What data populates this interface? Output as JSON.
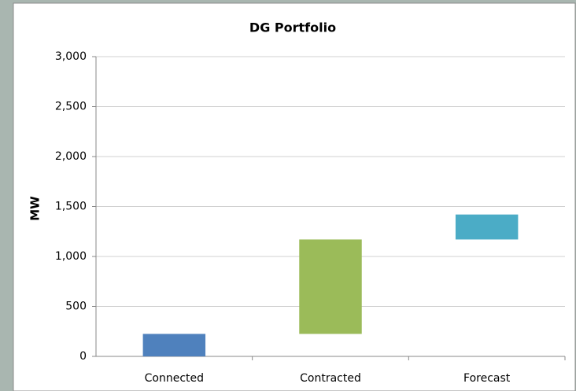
{
  "chart_data": {
    "type": "waterfall",
    "title": "DG Portfolio",
    "y_label": "MW",
    "categories": [
      "Connected",
      "Contracted",
      "Forecast"
    ],
    "values": [
      225,
      945,
      250
    ],
    "colors": [
      "#4f81bd",
      "#9bbb59",
      "#4bacc6"
    ],
    "ylim": [
      0,
      3000
    ],
    "yticks": [
      0,
      500,
      {
        "value": 1000,
        "label": "1,000"
      },
      {
        "value": 1500,
        "label": "1,500"
      },
      {
        "value": 2000,
        "label": "2,000"
      },
      {
        "value": 2500,
        "label": "2,500"
      },
      {
        "value": 3000,
        "label": "3,000"
      }
    ],
    "grid": true
  }
}
